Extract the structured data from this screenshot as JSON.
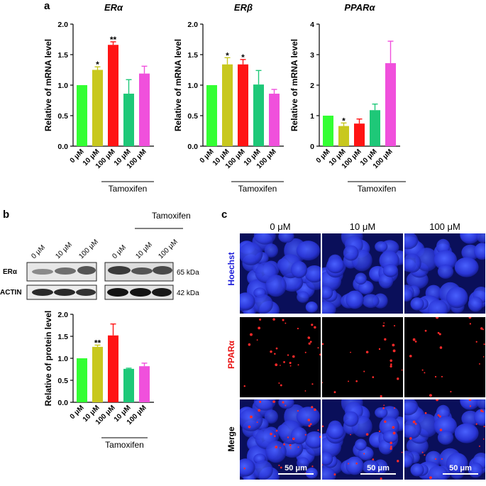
{
  "panels": {
    "a": "a",
    "b": "b",
    "c": "c"
  },
  "chart_data": [
    {
      "type": "bar",
      "title": "ERα",
      "ylabel": "Relative of mRNA level",
      "ylim": [
        0,
        2.0
      ],
      "yticks": [
        "0.0",
        "0.5",
        "1.0",
        "1.5",
        "2.0"
      ],
      "categories": [
        "0 μM",
        "10 μM",
        "100 μM",
        "10 μM",
        "100 μM"
      ],
      "values": [
        1.0,
        1.25,
        1.66,
        0.86,
        1.19
      ],
      "errors": [
        0,
        0.05,
        0.05,
        0.23,
        0.12
      ],
      "significance": [
        "",
        "*",
        "**",
        "",
        ""
      ],
      "colors": [
        "#33ff33",
        "#c8c81e",
        "#ff1414",
        "#1ec878",
        "#f050dc"
      ],
      "group_label": "Tamoxifen"
    },
    {
      "type": "bar",
      "title": "ERβ",
      "ylabel": "Relative of mRNA level",
      "ylim": [
        0,
        2.0
      ],
      "yticks": [
        "0.0",
        "0.5",
        "1.0",
        "1.5",
        "2.0"
      ],
      "categories": [
        "0 μM",
        "10 μM",
        "100 μM",
        "10 μM",
        "100 μM"
      ],
      "values": [
        1.0,
        1.34,
        1.34,
        1.01,
        0.86
      ],
      "errors": [
        0,
        0.11,
        0.08,
        0.23,
        0.07
      ],
      "significance": [
        "",
        "*",
        "*",
        "",
        ""
      ],
      "colors": [
        "#33ff33",
        "#c8c81e",
        "#ff1414",
        "#1ec878",
        "#f050dc"
      ],
      "group_label": "Tamoxifen"
    },
    {
      "type": "bar",
      "title": "PPARα",
      "ylabel": "Relative of mRNA level",
      "ylim": [
        0,
        4
      ],
      "yticks": [
        "0",
        "1",
        "2",
        "3",
        "4"
      ],
      "categories": [
        "0 μM",
        "10 μM",
        "100 μM",
        "10 μM",
        "100 μM"
      ],
      "values": [
        1.0,
        0.66,
        0.74,
        1.18,
        2.72
      ],
      "errors": [
        0,
        0.1,
        0.15,
        0.2,
        0.72
      ],
      "significance": [
        "",
        "*",
        "",
        "",
        ""
      ],
      "colors": [
        "#33ff33",
        "#c8c81e",
        "#ff1414",
        "#1ec878",
        "#f050dc"
      ],
      "group_label": "Tamoxifen"
    },
    {
      "type": "bar",
      "title": "",
      "ylabel": "Relative of protein level",
      "ylim": [
        0,
        2.0
      ],
      "yticks": [
        "0.0",
        "0.5",
        "1.0",
        "1.5",
        "2.0"
      ],
      "categories": [
        "0 μM",
        "10 μM",
        "100 μM",
        "10 μM",
        "100 μM"
      ],
      "values": [
        1.0,
        1.26,
        1.52,
        0.76,
        0.82
      ],
      "errors": [
        0,
        0.04,
        0.26,
        0.015,
        0.07
      ],
      "significance": [
        "",
        "**",
        "",
        "",
        ""
      ],
      "colors": [
        "#33ff33",
        "#c8c81e",
        "#ff1414",
        "#1ec878",
        "#f050dc"
      ],
      "group_label": "Tamoxifen"
    }
  ],
  "blot": {
    "lane_labels": [
      "0 μM",
      "10 μM",
      "100 μM",
      "0 μM",
      "10 μM",
      "100 μM"
    ],
    "treatment": "Tamoxifen",
    "row_labels": [
      "ERα",
      "ACTIN"
    ],
    "sizes": [
      "65 kDa",
      "42 kDa"
    ]
  },
  "imaging": {
    "columns": [
      "0 μM",
      "10 μM",
      "100 μM"
    ],
    "rows": [
      {
        "label": "Hoechst",
        "color": "#1a1ad8"
      },
      {
        "label": "PPARα",
        "color": "#e81010"
      },
      {
        "label": "Merge",
        "color": "#000000"
      }
    ],
    "scale_bar": "50 μm"
  }
}
